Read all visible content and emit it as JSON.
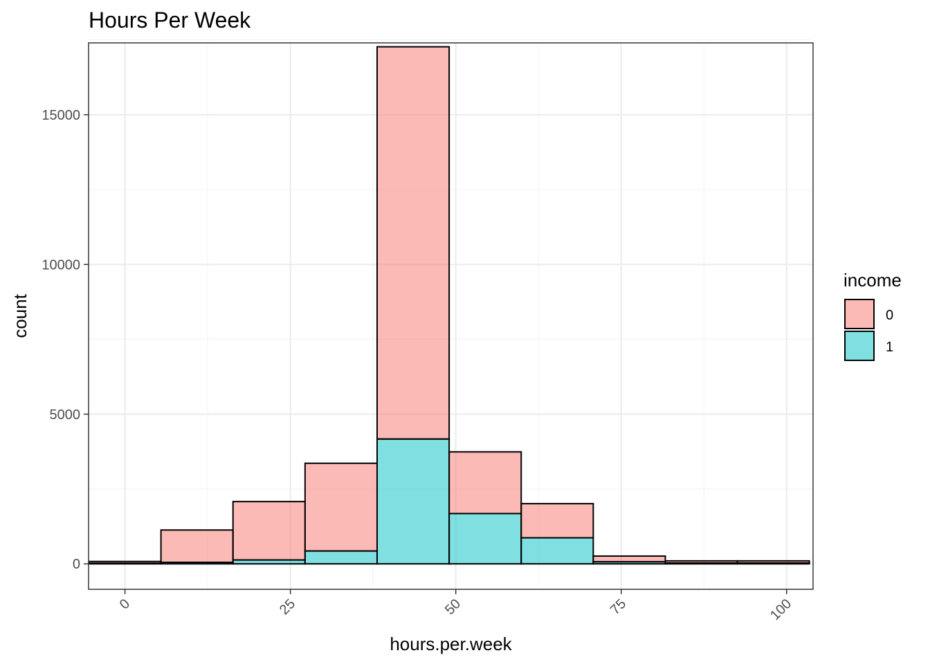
{
  "chart_data": {
    "type": "bar",
    "stacked": true,
    "histogram": true,
    "title": "Hours Per Week",
    "xlabel": "hours.per.week",
    "ylabel": "count",
    "xlim": [
      -5.5,
      104
    ],
    "ylim": [
      -850,
      17400
    ],
    "x_ticks": [
      0,
      25,
      50,
      75,
      100
    ],
    "y_ticks": [
      0,
      5000,
      10000,
      15000
    ],
    "bin_edges": [
      -5.44,
      5.44,
      16.33,
      27.22,
      38.11,
      49.0,
      59.89,
      70.78,
      81.67,
      92.56,
      103.44
    ],
    "grid": true,
    "legend": {
      "title": "income",
      "position": "right"
    },
    "series": [
      {
        "name": "0",
        "color": "#F8766D",
        "values": [
          60,
          1080,
          1950,
          2930,
          13100,
          2060,
          1140,
          190,
          70,
          70
        ]
      },
      {
        "name": "1",
        "color": "#00BFC4",
        "values": [
          20,
          50,
          130,
          430,
          4170,
          1680,
          870,
          70,
          30,
          30
        ]
      }
    ]
  }
}
